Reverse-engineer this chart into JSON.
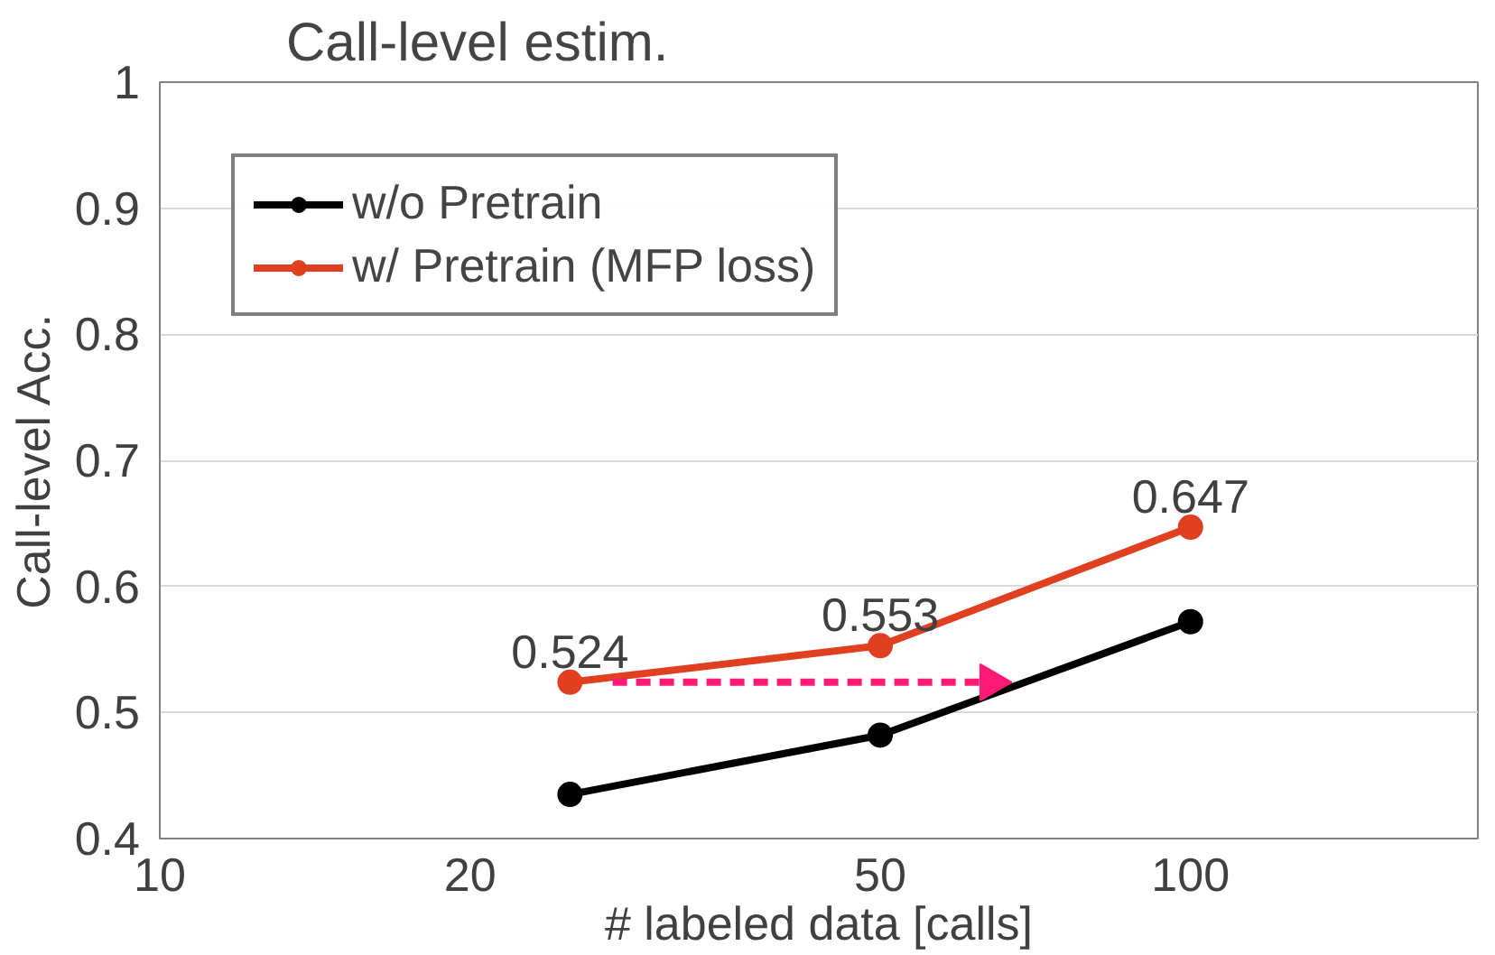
{
  "chart_data": {
    "type": "line",
    "title": "Call-level estim.",
    "xlabel": "# labeled data [calls]",
    "ylabel": "Call-level Acc.",
    "log": "x",
    "xlim": [
      10,
      190
    ],
    "xticks": [
      10,
      20,
      50,
      100
    ],
    "ylim": [
      0.4,
      1
    ],
    "yticks": [
      0.4,
      0.5,
      0.6,
      0.7,
      0.8,
      0.9,
      1
    ],
    "grid": "y",
    "legend": "top left",
    "marker": "circle",
    "line_style": "solid",
    "series": [
      {
        "name": "w/o Pretrain",
        "color": "#000000",
        "x": [
          25,
          50,
          100
        ],
        "values": [
          0.435,
          0.482,
          0.572
        ]
      },
      {
        "name": "w/ Pretrain (MFP loss)",
        "color": "#e04020",
        "x": [
          25,
          50,
          100
        ],
        "values": [
          0.524,
          0.553,
          0.647
        ],
        "value_labels": [
          "0.524",
          "0.553",
          "0.647"
        ]
      },
      {
        "color": "#ff1a75",
        "x": [
          27.5,
          64
        ],
        "values": [
          0.524,
          0.524
        ],
        "marker": "triangle",
        "line_style": "dashed"
      }
    ]
  }
}
